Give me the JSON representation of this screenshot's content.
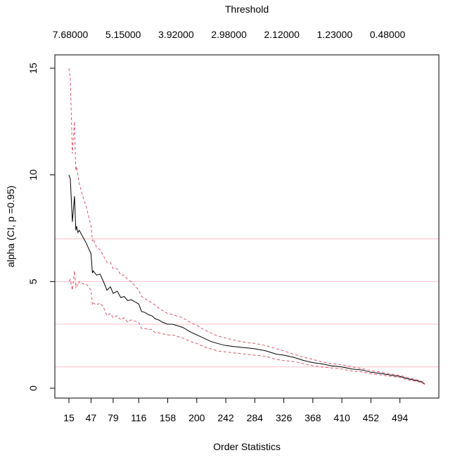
{
  "chart_data": {
    "type": "line",
    "top_axis_title": "Threshold",
    "top_axis_labels": [
      "7.68000",
      "5.15000",
      "3.92000",
      "2.98000",
      "2.12000",
      "1.23000",
      "0.48000"
    ],
    "xlabel": "Order Statistics",
    "ylabel": "alpha (CI, p =0.95)",
    "xticks": [
      15,
      47,
      79,
      116,
      158,
      200,
      242,
      284,
      326,
      368,
      410,
      452,
      494
    ],
    "yticks": [
      0,
      5,
      10,
      15
    ],
    "xlim": [
      15,
      530
    ],
    "ylim": [
      0,
      15
    ],
    "reference_lines": [
      1,
      3,
      5,
      7
    ],
    "colors": {
      "estimate": "#000000",
      "ci": "#df536b",
      "reference": "#ffc0cb"
    },
    "series": [
      {
        "role": "estimate",
        "x": [
          15,
          17,
          20,
          23,
          25,
          26,
          28,
          30,
          35,
          40,
          47,
          49,
          50,
          55,
          60,
          65,
          70,
          75,
          79,
          85,
          90,
          95,
          100,
          105,
          116,
          120,
          125,
          130,
          135,
          140,
          145,
          150,
          158,
          165,
          170,
          180,
          190,
          200,
          210,
          220,
          230,
          242,
          255,
          270,
          284,
          300,
          315,
          326,
          340,
          355,
          368,
          380,
          395,
          410,
          425,
          440,
          452,
          465,
          480,
          494,
          505,
          515,
          525,
          530
        ],
        "y": [
          10,
          9.8,
          7.8,
          9.0,
          7.4,
          7.6,
          7.3,
          7.4,
          7.1,
          6.8,
          6.3,
          5.4,
          5.5,
          5.3,
          5.35,
          5.0,
          4.6,
          4.75,
          4.45,
          4.55,
          4.25,
          4.3,
          4.1,
          4.15,
          3.95,
          3.6,
          3.55,
          3.45,
          3.4,
          3.25,
          3.2,
          3.1,
          3.0,
          3.0,
          2.95,
          2.85,
          2.65,
          2.5,
          2.35,
          2.2,
          2.1,
          2.0,
          1.95,
          1.9,
          1.85,
          1.75,
          1.6,
          1.55,
          1.45,
          1.3,
          1.2,
          1.15,
          1.05,
          1.0,
          0.9,
          0.85,
          0.75,
          0.7,
          0.62,
          0.55,
          0.45,
          0.38,
          0.3,
          0.2
        ]
      },
      {
        "role": "ci-upper",
        "x": [
          15,
          17,
          20,
          23,
          25,
          26,
          28,
          30,
          35,
          40,
          47,
          49,
          50,
          55,
          60,
          65,
          70,
          75,
          79,
          85,
          90,
          95,
          100,
          105,
          116,
          120,
          125,
          130,
          135,
          140,
          145,
          150,
          158,
          165,
          170,
          180,
          190,
          200,
          210,
          220,
          230,
          242,
          255,
          270,
          284,
          300,
          315,
          326,
          340,
          355,
          368,
          380,
          395,
          410,
          425,
          440,
          452,
          465,
          480,
          494,
          505,
          515,
          525,
          530
        ],
        "y": [
          15,
          14.5,
          11.0,
          12.5,
          10.2,
          10.4,
          10.0,
          9.6,
          9.0,
          8.5,
          7.6,
          6.9,
          7.0,
          6.6,
          6.5,
          6.2,
          5.9,
          5.9,
          5.6,
          5.6,
          5.3,
          5.3,
          5.1,
          5.0,
          4.6,
          4.3,
          4.2,
          4.1,
          4.0,
          3.9,
          3.75,
          3.65,
          3.5,
          3.45,
          3.4,
          3.3,
          3.1,
          2.95,
          2.75,
          2.6,
          2.45,
          2.35,
          2.25,
          2.15,
          2.1,
          2.0,
          1.85,
          1.75,
          1.6,
          1.45,
          1.35,
          1.25,
          1.15,
          1.1,
          1.0,
          0.92,
          0.82,
          0.76,
          0.67,
          0.6,
          0.5,
          0.42,
          0.33,
          0.22
        ]
      },
      {
        "role": "ci-lower",
        "x": [
          15,
          17,
          20,
          23,
          25,
          26,
          28,
          30,
          35,
          40,
          47,
          49,
          50,
          55,
          60,
          65,
          70,
          75,
          79,
          85,
          90,
          95,
          100,
          105,
          116,
          120,
          125,
          130,
          135,
          140,
          145,
          150,
          158,
          165,
          170,
          180,
          190,
          200,
          210,
          220,
          230,
          242,
          255,
          270,
          284,
          300,
          315,
          326,
          340,
          355,
          368,
          380,
          395,
          410,
          425,
          440,
          452,
          465,
          480,
          494,
          505,
          515,
          525,
          530
        ],
        "y": [
          5,
          5.1,
          4.6,
          5.5,
          4.7,
          4.9,
          4.8,
          5.0,
          4.9,
          4.9,
          4.6,
          3.9,
          4.0,
          3.9,
          4.0,
          3.8,
          3.4,
          3.5,
          3.3,
          3.4,
          3.2,
          3.3,
          3.1,
          3.2,
          3.1,
          2.8,
          2.8,
          2.75,
          2.75,
          2.6,
          2.6,
          2.55,
          2.5,
          2.5,
          2.45,
          2.35,
          2.2,
          2.1,
          1.95,
          1.85,
          1.75,
          1.7,
          1.65,
          1.6,
          1.55,
          1.5,
          1.35,
          1.3,
          1.25,
          1.15,
          1.05,
          1.0,
          0.95,
          0.9,
          0.8,
          0.76,
          0.68,
          0.63,
          0.56,
          0.5,
          0.4,
          0.34,
          0.27,
          0.18
        ]
      }
    ]
  }
}
